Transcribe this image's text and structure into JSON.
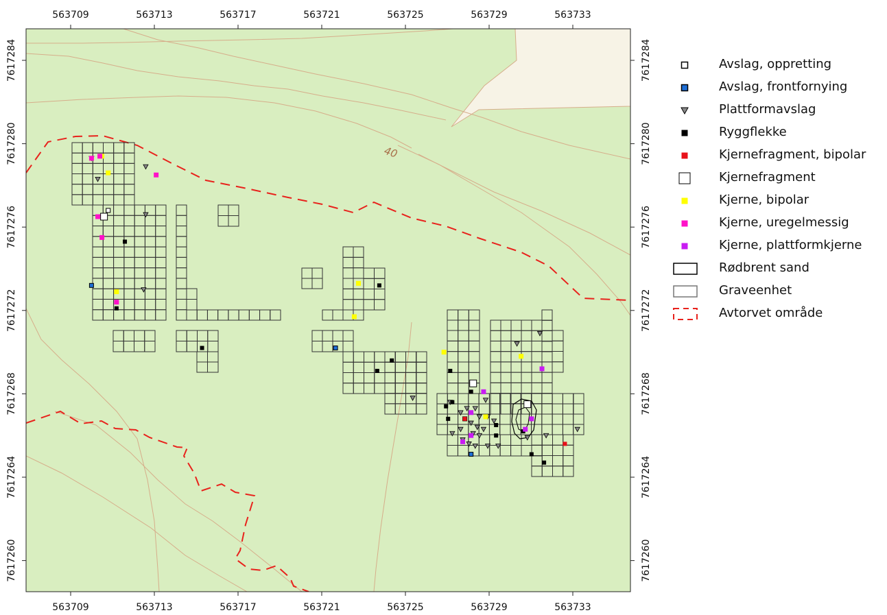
{
  "map": {
    "background_color": "#d9eec0",
    "open_area_color": "#f7f3e6",
    "contour_color": "#d6ad8a",
    "frame_color": "#222222",
    "grid_color": "#333333",
    "boundary_color": "#e8221c",
    "contour_label": "40",
    "x_ticks": [
      "563709",
      "563713",
      "563717",
      "563721",
      "563725",
      "563729",
      "563733"
    ],
    "y_ticks": [
      "7617284",
      "7617280",
      "7617276",
      "7617272",
      "7617268",
      "7617264",
      "7617260"
    ]
  },
  "legend": {
    "items": [
      {
        "label": "Avslag, oppretting",
        "symbol": "square-small",
        "color": "#ffffff"
      },
      {
        "label": "Avslag, frontfornying",
        "symbol": "square-small",
        "color": "#1f6fd6"
      },
      {
        "label": "Plattformavslag",
        "symbol": "triangle-down",
        "color": "#888888"
      },
      {
        "label": "Ryggflekke",
        "symbol": "square-small",
        "color": "#000000"
      },
      {
        "label": "Kjernefragment, bipolar",
        "symbol": "square-small",
        "color": "#e8111a"
      },
      {
        "label": "Kjernefragment",
        "symbol": "square-large",
        "color": "#ffffff"
      },
      {
        "label": "Kjerne, bipolar",
        "symbol": "square-small",
        "color": "#ffff00"
      },
      {
        "label": "Kjerne, uregelmessig",
        "symbol": "square-small",
        "color": "#ff11c8"
      },
      {
        "label": "Kjerne, plattformkjerne",
        "symbol": "square-small",
        "color": "#c81cf2"
      },
      {
        "label": "Rødbrent sand",
        "symbol": "polygon",
        "color": "#000000"
      },
      {
        "label": "Graveenhet",
        "symbol": "polygon",
        "color": "#777777"
      },
      {
        "label": "Avtorvet område",
        "symbol": "dashed-polygon",
        "color": "#e8221c"
      }
    ]
  },
  "finds": {
    "avslag_oppretting": [
      [
        563710.8,
        7617276.8
      ]
    ],
    "avslag_frontfornying": [
      [
        563710.0,
        7617273.2
      ],
      [
        563721.7,
        7617270.2
      ],
      [
        563728.2,
        7617265.1
      ],
      [
        563727.9,
        7617266.8
      ]
    ],
    "plattformavslag": [
      [
        563710.0,
        7617279.3
      ],
      [
        563710.3,
        7617278.3
      ],
      [
        563712.6,
        7617278.9
      ],
      [
        563712.6,
        7617276.6
      ],
      [
        563712.5,
        7617273.0
      ],
      [
        563725.4,
        7617267.8
      ],
      [
        563730.4,
        7617270.4
      ],
      [
        563731.5,
        7617270.9
      ],
      [
        563733.3,
        7617266.3
      ],
      [
        563731.8,
        7617266.0
      ],
      [
        563730.9,
        7617265.9
      ],
      [
        563727.2,
        7617267.6
      ],
      [
        563727.7,
        7617267.1
      ],
      [
        563728.0,
        7617267.3
      ],
      [
        563728.4,
        7617267.3
      ],
      [
        563728.9,
        7617267.7
      ],
      [
        563728.6,
        7617266.9
      ],
      [
        563729.0,
        7617266.9
      ],
      [
        563729.3,
        7617266.7
      ],
      [
        563728.2,
        7617266.6
      ],
      [
        563728.5,
        7617266.4
      ],
      [
        563728.8,
        7617266.3
      ],
      [
        563728.3,
        7617266.1
      ],
      [
        563728.6,
        7617266.0
      ],
      [
        563727.3,
        7617266.1
      ],
      [
        563727.8,
        7617265.8
      ],
      [
        563728.1,
        7617265.6
      ],
      [
        563728.4,
        7617265.5
      ],
      [
        563729.0,
        7617265.5
      ],
      [
        563729.5,
        7617265.5
      ],
      [
        563727.7,
        7617266.3
      ]
    ],
    "ryggflekke": [
      [
        563711.6,
        7617275.3
      ],
      [
        563711.2,
        7617272.1
      ],
      [
        563715.3,
        7617270.2
      ],
      [
        563723.8,
        7617273.2
      ],
      [
        563723.7,
        7617269.1
      ],
      [
        563724.4,
        7617269.6
      ],
      [
        563727.2,
        7617269.1
      ],
      [
        563727.0,
        7617267.4
      ],
      [
        563727.3,
        7617267.6
      ],
      [
        563728.2,
        7617268.1
      ],
      [
        563729.4,
        7617266.5
      ],
      [
        563729.4,
        7617266.0
      ],
      [
        563730.7,
        7617266.2
      ],
      [
        563731.1,
        7617265.1
      ],
      [
        563731.7,
        7617264.7
      ],
      [
        563727.1,
        7617266.8
      ]
    ],
    "kjernefragment_bipolar": [
      [
        563732.7,
        7617265.6
      ],
      [
        563727.9,
        7617266.8
      ]
    ],
    "kjernefragment": [
      [
        563710.6,
        7617276.5
      ],
      [
        563728.3,
        7617268.5
      ],
      [
        563730.9,
        7617267.5
      ]
    ],
    "kjerne_bipolar": [
      [
        563710.5,
        7617279.4
      ],
      [
        563710.8,
        7617278.6
      ],
      [
        563711.2,
        7617272.9
      ],
      [
        563722.8,
        7617273.3
      ],
      [
        563722.6,
        7617271.7
      ],
      [
        563726.9,
        7617270.0
      ],
      [
        563730.6,
        7617269.8
      ],
      [
        563728.9,
        7617266.9
      ]
    ],
    "kjerne_uregelmessig": [
      [
        563710.0,
        7617279.3
      ],
      [
        563710.4,
        7617279.4
      ],
      [
        563713.1,
        7617278.5
      ],
      [
        563710.3,
        7617276.5
      ],
      [
        563710.5,
        7617275.5
      ],
      [
        563711.2,
        7617272.4
      ]
    ],
    "kjerne_plattformkjerne": [
      [
        563731.6,
        7617269.2
      ],
      [
        563728.8,
        7617268.1
      ],
      [
        563728.2,
        7617267.1
      ],
      [
        563728.2,
        7617266.0
      ],
      [
        563727.8,
        7617265.7
      ],
      [
        563731.1,
        7617266.8
      ],
      [
        563730.8,
        7617266.3
      ]
    ]
  }
}
